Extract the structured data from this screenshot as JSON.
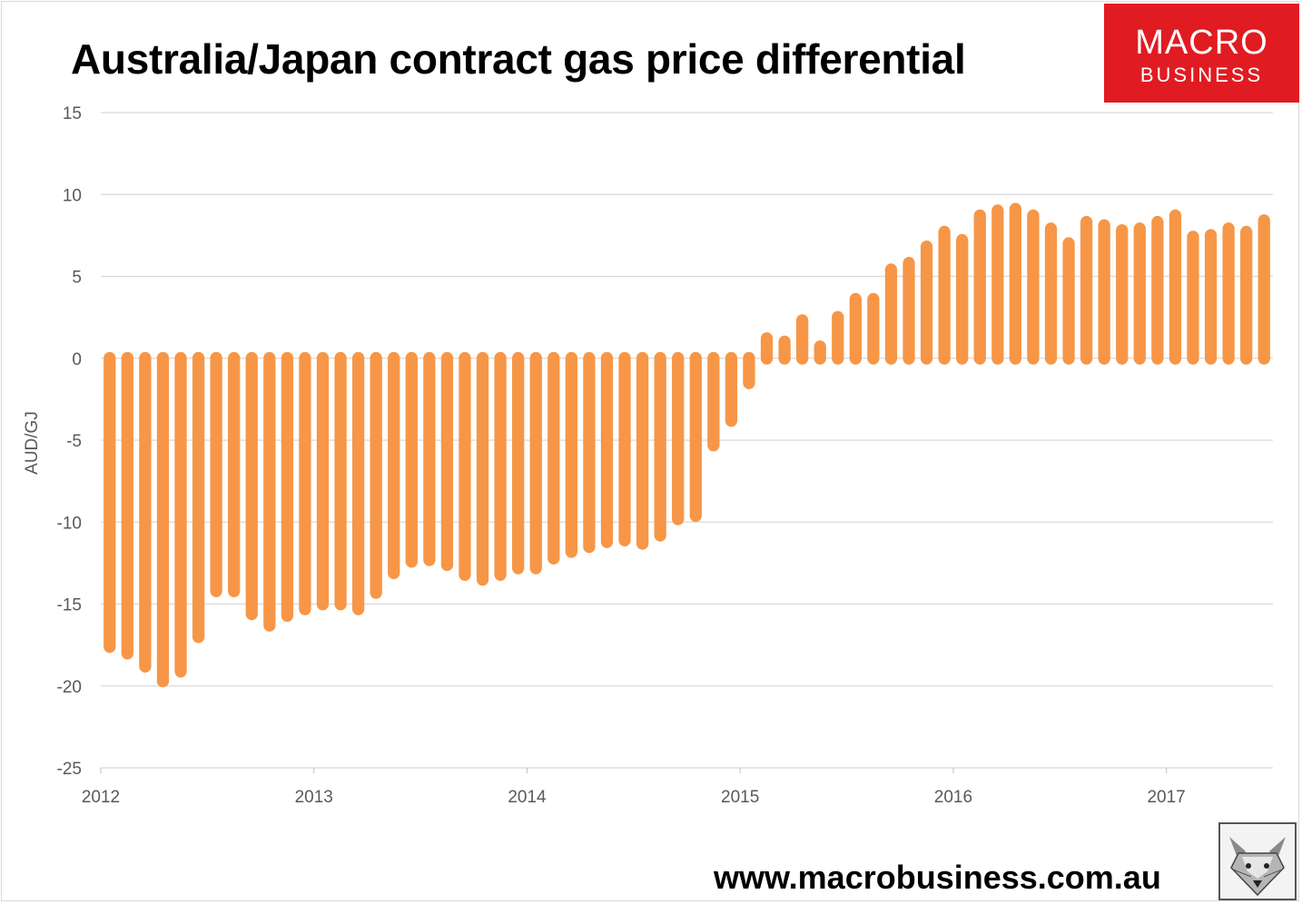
{
  "header": {
    "title": "Australia/Japan contract gas price differential"
  },
  "logo": {
    "line1": "MACRO",
    "line2": "BUSINESS",
    "color": "#e11b22"
  },
  "footer": {
    "url": "www.macrobusiness.com.au",
    "mascot_icon": "fox-icon"
  },
  "chart_data": {
    "type": "bar",
    "title": "Australia/Japan contract gas price differential",
    "ylabel": "AUD/GJ",
    "xlabel": "",
    "ylim": [
      -25,
      15
    ],
    "yticks": [
      15,
      10,
      5,
      0,
      -5,
      -10,
      -15,
      -20,
      -25
    ],
    "xticks": [
      "2012",
      "2013",
      "2014",
      "2015",
      "2016",
      "2017"
    ],
    "grid": true,
    "bar_color": "#f79646",
    "x": [
      "2012-01",
      "2012-02",
      "2012-03",
      "2012-04",
      "2012-05",
      "2012-06",
      "2012-07",
      "2012-08",
      "2012-09",
      "2012-10",
      "2012-11",
      "2012-12",
      "2013-01",
      "2013-02",
      "2013-03",
      "2013-04",
      "2013-05",
      "2013-06",
      "2013-07",
      "2013-08",
      "2013-09",
      "2013-10",
      "2013-11",
      "2013-12",
      "2014-01",
      "2014-02",
      "2014-03",
      "2014-04",
      "2014-05",
      "2014-06",
      "2014-07",
      "2014-08",
      "2014-09",
      "2014-10",
      "2014-11",
      "2014-12",
      "2015-01",
      "2015-02",
      "2015-03",
      "2015-04",
      "2015-05",
      "2015-06",
      "2015-07",
      "2015-08",
      "2015-09",
      "2015-10",
      "2015-11",
      "2015-12",
      "2016-01",
      "2016-02",
      "2016-03",
      "2016-04",
      "2016-05",
      "2016-06",
      "2016-07",
      "2016-08",
      "2016-09",
      "2016-10",
      "2016-11",
      "2016-12",
      "2017-01",
      "2017-02",
      "2017-03",
      "2017-04",
      "2017-05",
      "2017-06"
    ],
    "values": [
      -17.6,
      -18.0,
      -18.8,
      -19.7,
      -19.1,
      -17.0,
      -14.2,
      -14.2,
      -15.6,
      -16.3,
      -15.7,
      -15.3,
      -15.0,
      -15.0,
      -15.3,
      -14.3,
      -13.1,
      -12.4,
      -12.3,
      -12.6,
      -13.2,
      -13.5,
      -13.2,
      -12.8,
      -12.8,
      -12.2,
      -11.8,
      -11.5,
      -11.2,
      -11.1,
      -11.3,
      -10.8,
      -9.8,
      -9.6,
      -5.3,
      -3.8,
      -1.5,
      1.2,
      1.0,
      2.3,
      0.7,
      2.5,
      3.6,
      3.6,
      5.4,
      5.8,
      6.8,
      7.7,
      7.2,
      8.7,
      9.0,
      9.1,
      8.7,
      7.9,
      7.0,
      8.3,
      8.1,
      7.8,
      7.9,
      8.3,
      8.7,
      7.4,
      7.5,
      7.9,
      7.7,
      8.4
    ]
  }
}
